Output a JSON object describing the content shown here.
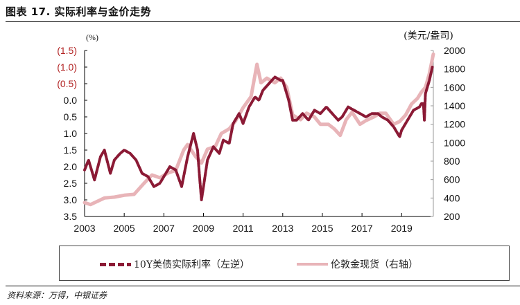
{
  "header": {
    "title": "图表 17. 实际利率与金价走势"
  },
  "footer": {
    "source": "资料来源：万得，中银证券"
  },
  "legend": [
    {
      "label": "10Y美债实际利率（左逆）",
      "style": "dashed",
      "color": "#8b1a35"
    },
    {
      "label": "伦敦金现货（右轴）",
      "style": "solid",
      "color": "#e8b4b8"
    }
  ],
  "chart_data": {
    "type": "line",
    "title": "实际利率与金价走势",
    "left_axis": {
      "unit_label": "(%)",
      "reversed": true,
      "range": [
        -1.5,
        3.5
      ],
      "ticks": [
        "(1.5)",
        "(1.0)",
        "(0.5)",
        "0.0",
        "0.5",
        "1.0",
        "1.5",
        "2.0",
        "2.5",
        "3.0",
        "3.5"
      ],
      "negative_tick_color": "#b22222"
    },
    "right_axis": {
      "unit_label": "(美元/盎司)",
      "range": [
        200,
        2000
      ],
      "ticks": [
        "2000",
        "1800",
        "1600",
        "1400",
        "1200",
        "1000",
        "800",
        "600",
        "400",
        "200"
      ]
    },
    "x_axis": {
      "range": [
        2003,
        2020.6
      ],
      "ticks": [
        "2003",
        "2005",
        "2007",
        "2009",
        "2011",
        "2013",
        "2015",
        "2017",
        "2019"
      ]
    },
    "grid": false,
    "legend_position": "bottom",
    "series": [
      {
        "name": "10Y美债实际利率（左逆）",
        "axis": "left",
        "color": "#8b1a35",
        "style": "dashed",
        "x": [
          2003.0,
          2003.2,
          2003.5,
          2003.8,
          2004.0,
          2004.3,
          2004.5,
          2004.8,
          2005.0,
          2005.3,
          2005.6,
          2005.9,
          2006.2,
          2006.5,
          2006.8,
          2007.0,
          2007.3,
          2007.6,
          2007.9,
          2008.2,
          2008.5,
          2008.7,
          2008.8,
          2008.9,
          2009.0,
          2009.2,
          2009.5,
          2009.8,
          2010.0,
          2010.3,
          2010.5,
          2010.8,
          2011.0,
          2011.3,
          2011.6,
          2011.8,
          2012.0,
          2012.3,
          2012.6,
          2012.9,
          2013.0,
          2013.3,
          2013.5,
          2013.7,
          2014.0,
          2014.3,
          2014.6,
          2014.9,
          2015.2,
          2015.5,
          2015.8,
          2016.0,
          2016.3,
          2016.6,
          2016.9,
          2017.2,
          2017.5,
          2017.8,
          2018.0,
          2018.3,
          2018.6,
          2018.9,
          2019.0,
          2019.3,
          2019.6,
          2019.9,
          2020.0,
          2020.1,
          2020.15,
          2020.2,
          2020.4,
          2020.55
        ],
        "values": [
          2.1,
          1.8,
          2.4,
          1.7,
          1.5,
          2.2,
          1.8,
          1.6,
          1.5,
          1.6,
          1.8,
          2.2,
          2.3,
          2.6,
          2.5,
          2.3,
          2.0,
          2.1,
          2.6,
          1.7,
          1.0,
          1.5,
          2.3,
          3.0,
          2.6,
          1.8,
          1.4,
          1.6,
          1.2,
          1.3,
          0.7,
          0.4,
          0.7,
          0.2,
          -0.1,
          0.0,
          -0.3,
          -0.5,
          -0.7,
          -0.6,
          -0.6,
          0.0,
          0.6,
          0.6,
          0.4,
          0.6,
          0.3,
          0.4,
          0.2,
          0.4,
          0.6,
          0.5,
          0.2,
          0.3,
          0.4,
          0.5,
          0.4,
          0.4,
          0.5,
          0.6,
          0.8,
          1.1,
          0.9,
          0.6,
          0.3,
          0.2,
          0.1,
          0.1,
          0.6,
          -0.2,
          -0.6,
          -1.0
        ]
      },
      {
        "name": "伦敦金现货（右轴）",
        "axis": "right",
        "color": "#e8b4b8",
        "style": "solid",
        "x": [
          2003.0,
          2003.3,
          2003.6,
          2004.0,
          2004.5,
          2005.0,
          2005.5,
          2006.0,
          2006.4,
          2006.8,
          2007.2,
          2007.6,
          2008.0,
          2008.2,
          2008.6,
          2008.9,
          2009.2,
          2009.6,
          2009.9,
          2010.3,
          2010.6,
          2011.0,
          2011.4,
          2011.7,
          2011.9,
          2012.2,
          2012.6,
          2012.9,
          2013.2,
          2013.5,
          2013.9,
          2014.2,
          2014.6,
          2014.9,
          2015.3,
          2015.6,
          2015.9,
          2016.2,
          2016.5,
          2016.9,
          2017.2,
          2017.6,
          2017.9,
          2018.2,
          2018.6,
          2018.9,
          2019.2,
          2019.5,
          2019.8,
          2020.0,
          2020.2,
          2020.4,
          2020.6
        ],
        "values": [
          350,
          330,
          360,
          400,
          410,
          430,
          440,
          560,
          650,
          620,
          670,
          700,
          920,
          980,
          850,
          780,
          930,
          960,
          1100,
          1150,
          1230,
          1380,
          1500,
          1850,
          1650,
          1700,
          1650,
          1700,
          1600,
          1300,
          1250,
          1320,
          1280,
          1200,
          1200,
          1150,
          1080,
          1250,
          1330,
          1200,
          1240,
          1280,
          1320,
          1320,
          1200,
          1230,
          1300,
          1420,
          1480,
          1550,
          1600,
          1750,
          1960
        ]
      }
    ]
  }
}
